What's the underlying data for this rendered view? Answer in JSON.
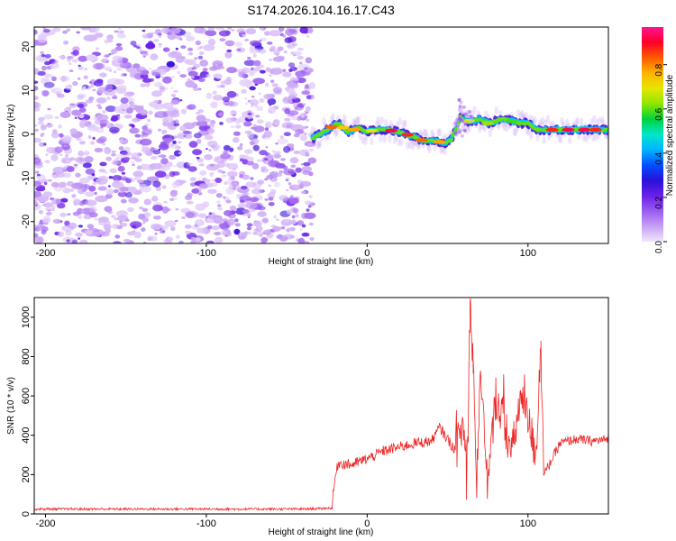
{
  "title": "S174.2026.104.16.17.C43",
  "chart_data": [
    {
      "id": "spectrogram",
      "type": "heatmap",
      "title": "S174.2026.104.16.17.C43",
      "xlabel": "Height of straight line (km)",
      "ylabel": "Frequency (Hz)",
      "xlim": [
        -207,
        150
      ],
      "ylim": [
        -25,
        24.5
      ],
      "xticks": [
        -200,
        -100,
        0,
        100
      ],
      "yticks": [
        -20,
        -10,
        0,
        10,
        20
      ],
      "noise_region": {
        "x_range": [
          -207,
          -34
        ],
        "description_values": "low-amplitude broadband noise"
      },
      "ridge": {
        "x": [
          -34,
          -25,
          -18,
          -12,
          -5,
          0,
          5,
          12,
          20,
          28,
          35,
          42,
          48,
          52,
          55,
          58,
          62,
          66,
          70,
          75,
          80,
          85,
          90,
          95,
          100,
          105,
          110,
          120,
          130,
          140,
          150
        ],
        "frequency": [
          -1,
          1,
          2.5,
          0.5,
          1.5,
          0.5,
          1,
          1,
          0.5,
          -0.5,
          -1.5,
          -1.5,
          -2,
          -1.5,
          1,
          4,
          3,
          3,
          3.5,
          2.5,
          3,
          3.5,
          3,
          2.5,
          2.5,
          1,
          1,
          1,
          1,
          1,
          1
        ]
      },
      "colorbar": {
        "label": "Normalized spectral amplitude",
        "range": [
          0,
          0.97
        ],
        "ticks": [
          0.0,
          0.2,
          0.4,
          0.6,
          0.8
        ],
        "tick_labels": [
          "0.0",
          "0.2",
          "0.4",
          "0.6",
          "0.8"
        ],
        "colormap": [
          "#f2e6ff",
          "#c7a0f5",
          "#9a5cf0",
          "#6a1fe8",
          "#2a10d8",
          "#0050ff",
          "#00b4ff",
          "#00e6c8",
          "#00d23c",
          "#8fe600",
          "#e6e600",
          "#ffb400",
          "#ff5a00",
          "#ff0028",
          "#ff1493"
        ]
      }
    },
    {
      "id": "snr",
      "type": "line",
      "xlabel": "Height of straight line (km)",
      "ylabel": "SNR (10 * v/v)",
      "xlim": [
        -207,
        150
      ],
      "ylim": [
        0,
        1100
      ],
      "xticks": [
        -200,
        -100,
        0,
        100
      ],
      "yticks": [
        0,
        200,
        400,
        600,
        800,
        1000
      ],
      "series": [
        {
          "name": "SNR",
          "color": "#ee2222",
          "x": [
            -207,
            -180,
            -150,
            -120,
            -100,
            -80,
            -60,
            -40,
            -22,
            -20,
            -18,
            -10,
            0,
            10,
            20,
            30,
            40,
            45,
            50,
            55,
            60,
            62,
            64,
            66,
            68,
            70,
            75,
            80,
            85,
            90,
            95,
            100,
            105,
            108,
            110,
            120,
            130,
            140,
            150
          ],
          "y": [
            25,
            25,
            25,
            25,
            25,
            25,
            25,
            25,
            30,
            180,
            260,
            250,
            280,
            320,
            340,
            360,
            370,
            440,
            380,
            320,
            460,
            80,
            1080,
            780,
            100,
            700,
            140,
            600,
            480,
            300,
            580,
            480,
            300,
            880,
            200,
            360,
            380,
            370,
            380
          ]
        }
      ]
    }
  ]
}
